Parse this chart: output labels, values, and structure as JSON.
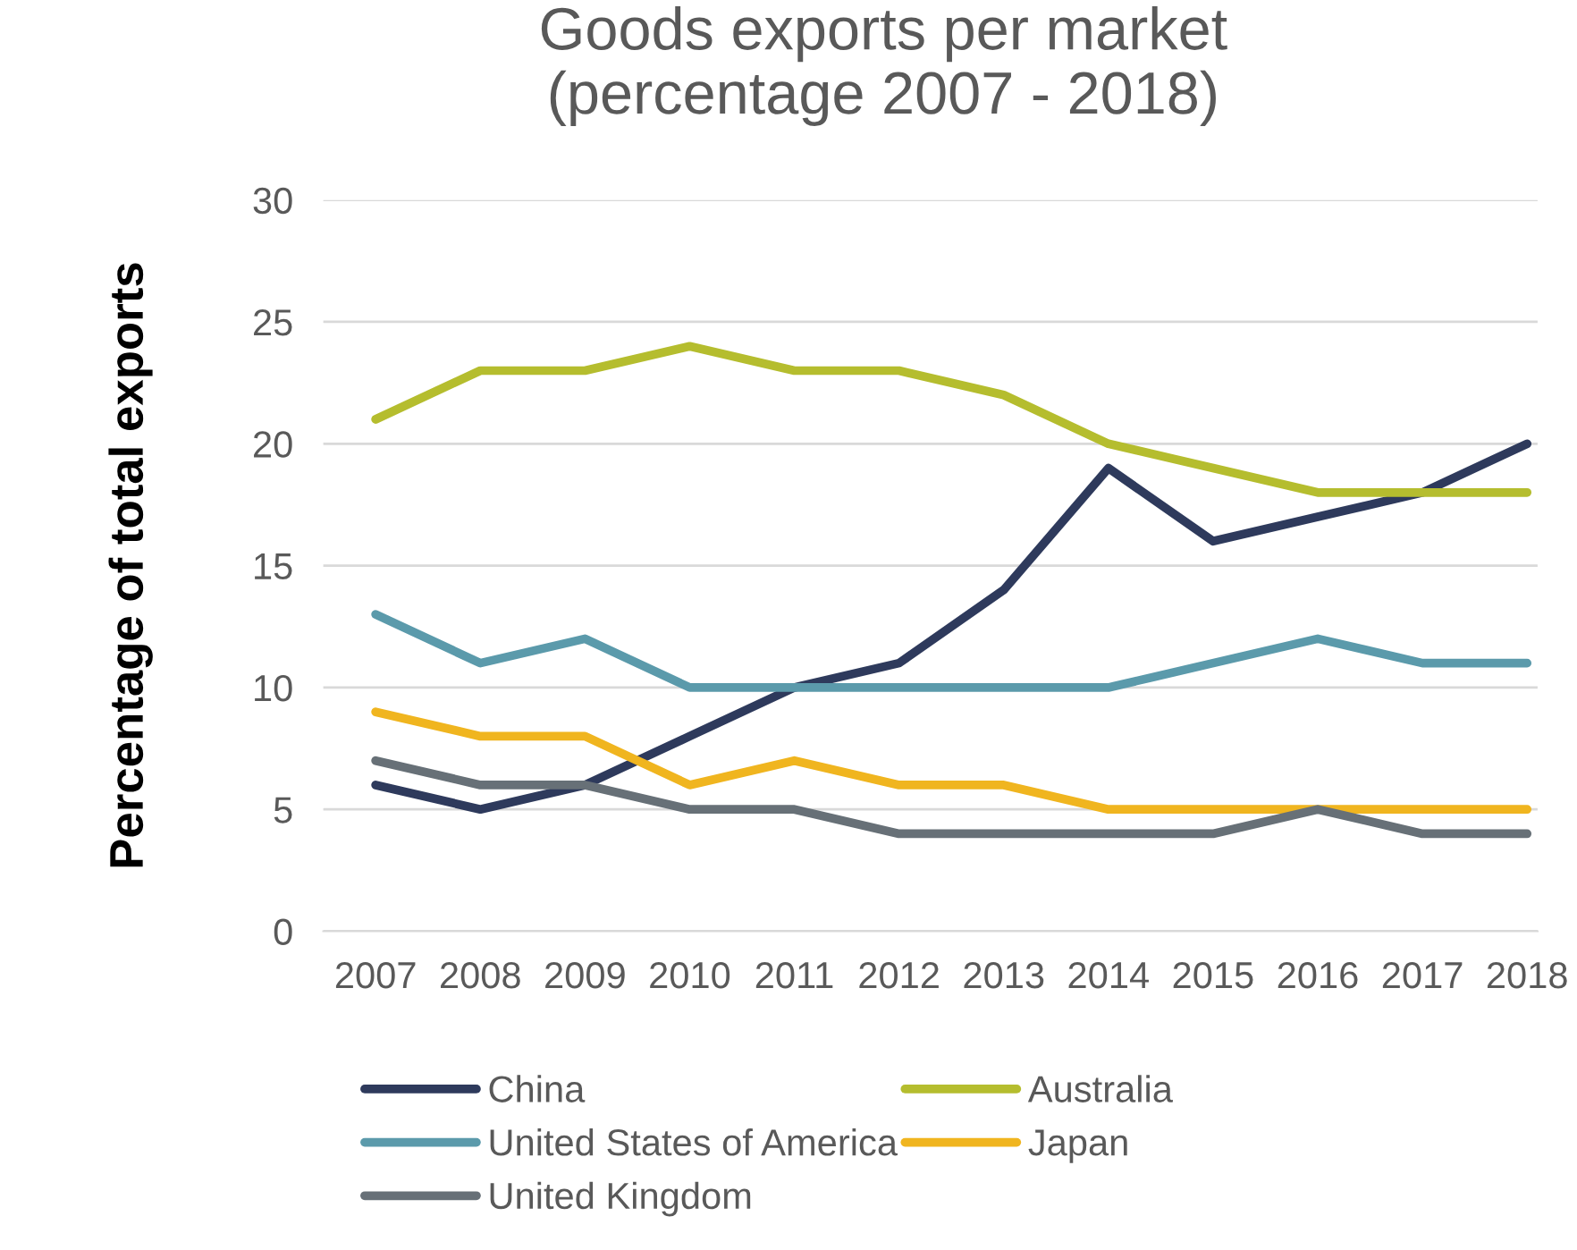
{
  "chart_data": {
    "type": "line",
    "title": "Goods exports per market\n(percentage 2007 - 2018)",
    "ylabel": "Percentage of total exports",
    "categories": [
      "2007",
      "2008",
      "2009",
      "2010",
      "2011",
      "2012",
      "2013",
      "2014",
      "2015",
      "2016",
      "2017",
      "2018"
    ],
    "series": [
      {
        "name": "China",
        "color": "#2e3a5c",
        "values": [
          6,
          5,
          6,
          8,
          10,
          11,
          14,
          19,
          16,
          17,
          18,
          20
        ]
      },
      {
        "name": "Australia",
        "color": "#b5bd2e",
        "values": [
          21,
          23,
          23,
          24,
          23,
          23,
          22,
          20,
          19,
          18,
          18,
          18
        ]
      },
      {
        "name": "United States of America",
        "color": "#5b9aab",
        "values": [
          13,
          11,
          12,
          10,
          10,
          10,
          10,
          10,
          11,
          12,
          11,
          11
        ]
      },
      {
        "name": "Japan",
        "color": "#f0b51f",
        "values": [
          9,
          8,
          8,
          6,
          7,
          6,
          6,
          5,
          5,
          5,
          5,
          5
        ]
      },
      {
        "name": "United Kingdom",
        "color": "#677077",
        "values": [
          7,
          6,
          6,
          5,
          5,
          4,
          4,
          4,
          4,
          5,
          4,
          4
        ]
      }
    ],
    "ylim": [
      0,
      30
    ],
    "yticks": [
      0,
      5,
      10,
      15,
      20,
      25,
      30
    ],
    "grid": "y",
    "legend": "bottom",
    "marker": "none",
    "line_style": "solid"
  }
}
